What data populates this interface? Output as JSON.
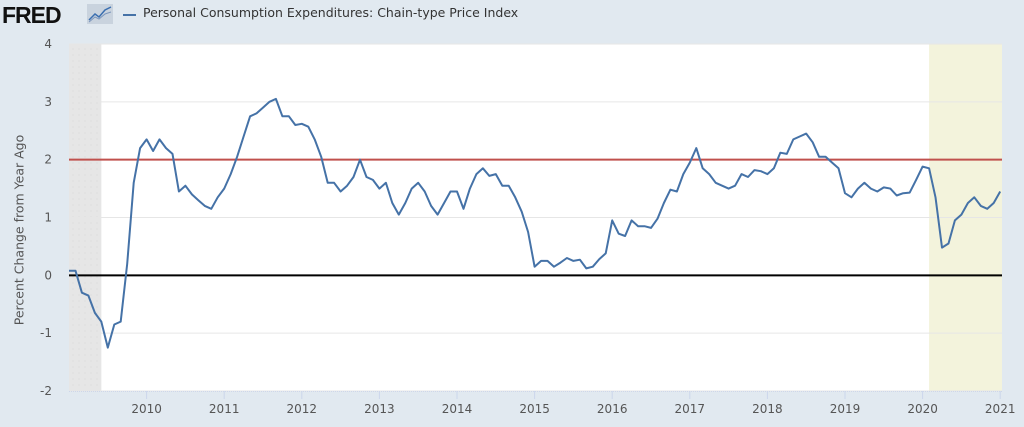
{
  "header": {
    "logo_text": "FRED",
    "logo_icon": "line-chart-icon",
    "legend_label": "Personal Consumption Expenditures: Chain-type Price Index"
  },
  "colors": {
    "series": "#4572a7",
    "reference_line": "#c0504d",
    "zero_line": "#000000",
    "recession_2009": "#e6e6e6",
    "recession_2020": "#f3f3dc",
    "background": "#e1e9f0",
    "plot_bg": "#ffffff"
  },
  "chart_data": {
    "type": "line",
    "title": "",
    "xlabel": "",
    "ylabel": "Percent Change from Year Ago",
    "ylim": [
      -2,
      4
    ],
    "xlim": [
      "2009-01",
      "2021-01"
    ],
    "yticks": [
      "-2",
      "-1",
      "0",
      "1",
      "2",
      "3",
      "4"
    ],
    "xticks": [
      "2010",
      "2011",
      "2012",
      "2013",
      "2014",
      "2015",
      "2016",
      "2017",
      "2018",
      "2019",
      "2020",
      "2021"
    ],
    "grid": true,
    "legend": "top-left",
    "reference_lines": [
      {
        "value": 2,
        "label": "",
        "color": "#c0504d"
      },
      {
        "value": 0,
        "label": "",
        "color": "#000000"
      }
    ],
    "shaded_periods": [
      {
        "start": "2009-01",
        "end": "2009-06",
        "color": "#e6e6e6"
      },
      {
        "start": "2020-02",
        "end": "2021-01",
        "color": "#f3f3dc"
      }
    ],
    "series": [
      {
        "name": "Personal Consumption Expenditures: Chain-type Price Index",
        "start": "2009-01",
        "frequency": "monthly",
        "values": [
          0.08,
          0.08,
          -0.3,
          -0.35,
          -0.65,
          -0.8,
          -1.25,
          -0.85,
          -0.8,
          0.2,
          1.6,
          2.2,
          2.35,
          2.15,
          2.35,
          2.2,
          2.1,
          1.45,
          1.55,
          1.4,
          1.3,
          1.2,
          1.15,
          1.35,
          1.5,
          1.75,
          2.05,
          2.4,
          2.75,
          2.8,
          2.9,
          3.0,
          3.05,
          2.75,
          2.75,
          2.6,
          2.62,
          2.57,
          2.35,
          2.05,
          1.6,
          1.6,
          1.45,
          1.55,
          1.7,
          2.0,
          1.7,
          1.65,
          1.5,
          1.6,
          1.25,
          1.05,
          1.25,
          1.5,
          1.6,
          1.45,
          1.2,
          1.05,
          1.25,
          1.45,
          1.45,
          1.15,
          1.5,
          1.75,
          1.85,
          1.72,
          1.75,
          1.55,
          1.55,
          1.35,
          1.1,
          0.75,
          0.15,
          0.25,
          0.25,
          0.15,
          0.22,
          0.3,
          0.25,
          0.27,
          0.12,
          0.15,
          0.28,
          0.38,
          0.95,
          0.72,
          0.68,
          0.95,
          0.85,
          0.85,
          0.82,
          0.98,
          1.25,
          1.48,
          1.45,
          1.75,
          1.95,
          2.2,
          1.85,
          1.75,
          1.6,
          1.55,
          1.5,
          1.55,
          1.75,
          1.7,
          1.82,
          1.8,
          1.75,
          1.85,
          2.12,
          2.1,
          2.35,
          2.4,
          2.45,
          2.3,
          2.05,
          2.05,
          1.95,
          1.85,
          1.42,
          1.35,
          1.5,
          1.6,
          1.5,
          1.45,
          1.52,
          1.5,
          1.38,
          1.42,
          1.43,
          1.65,
          1.88,
          1.85,
          1.35,
          0.48,
          0.55,
          0.95,
          1.05,
          1.25,
          1.35,
          1.2,
          1.15,
          1.25,
          1.45
        ]
      }
    ]
  }
}
